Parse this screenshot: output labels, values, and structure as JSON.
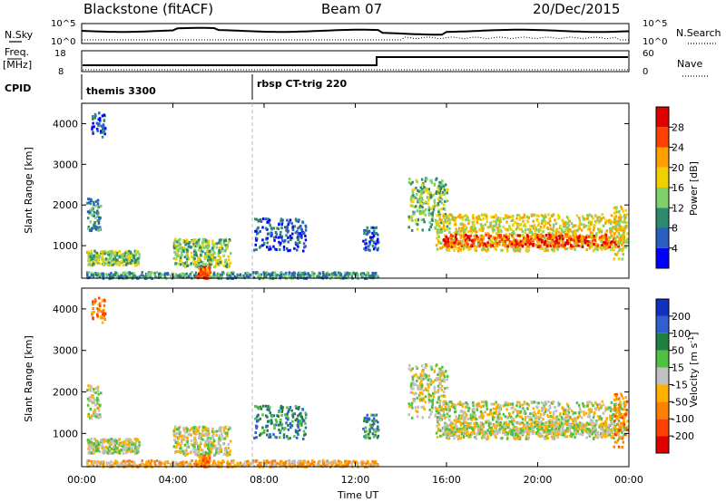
{
  "header": {
    "station": "Blackstone (fitACF)",
    "beam": "Beam 07",
    "date": "20/Dec/2015"
  },
  "top_panels": {
    "nsky_label": "N.Sky",
    "nsky_ticks": [
      "10^5",
      "10^0"
    ],
    "nsearch_label": "N.Search",
    "nsearch_ticks": [
      "10^5",
      "10^0"
    ],
    "freq_label_1": "Freq.",
    "freq_label_2": "[MHz]",
    "freq_ticks": [
      "18",
      "8"
    ],
    "nave_label": "Nave",
    "nave_ticks": [
      "60",
      "0"
    ],
    "cpid_label": "CPID",
    "cpid_segments": [
      {
        "label": "themis 3300",
        "start_hour": 0
      },
      {
        "label": "rbsp CT-trig 220",
        "start_hour": 7.5
      }
    ]
  },
  "chart_data": [
    {
      "type": "heatmap",
      "title": "Power",
      "ylabel": "Slant Range [km]",
      "xlabel": "",
      "ylim": [
        200,
        4500
      ],
      "xlim_hours": [
        0,
        24
      ],
      "y_ticks": [
        "1000",
        "2000",
        "3000",
        "4000"
      ],
      "colorbar": {
        "label": "Power [dB]",
        "ticks": [
          "4",
          "8",
          "12",
          "16",
          "20",
          "24",
          "28"
        ],
        "range": [
          0,
          32
        ],
        "colors": [
          "#0000ff",
          "#2a5fc0",
          "#2e8a6e",
          "#7fd06a",
          "#f0d000",
          "#ffa000",
          "#ff4000",
          "#e00000"
        ]
      }
    },
    {
      "type": "heatmap",
      "title": "Velocity",
      "ylabel": "Slant Range [km]",
      "xlabel": "Time UT",
      "ylim": [
        200,
        4500
      ],
      "xlim_hours": [
        0,
        24
      ],
      "y_ticks": [
        "1000",
        "2000",
        "3000",
        "4000"
      ],
      "x_ticks": [
        "00:00",
        "04:00",
        "08:00",
        "12:00",
        "16:00",
        "20:00",
        "00:00"
      ],
      "colorbar": {
        "label": "Velocity [m s^-1]",
        "ticks": [
          "200",
          "100",
          "50",
          "15",
          "-15",
          "-50",
          "-100",
          "-200"
        ],
        "colors": [
          "#1030c0",
          "#3060d0",
          "#208040",
          "#50c040",
          "#c0c0c0",
          "#ffb000",
          "#ff8000",
          "#ff4000",
          "#e00000"
        ]
      }
    }
  ]
}
